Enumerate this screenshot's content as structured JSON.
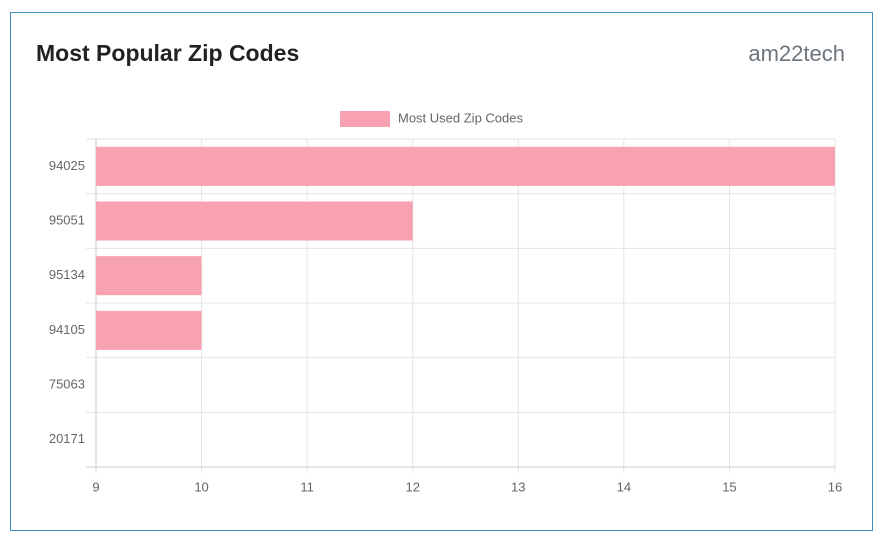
{
  "brand": "am22tech",
  "chart_data": {
    "type": "bar",
    "orientation": "horizontal",
    "title": "Most Popular Zip Codes",
    "categories": [
      "94025",
      "95051",
      "95134",
      "94105",
      "75063",
      "20171"
    ],
    "series": [
      {
        "name": "Most Used Zip Codes",
        "color": "#f7a1b1",
        "values": [
          16,
          12,
          10,
          10,
          9,
          9
        ]
      }
    ],
    "xlim": [
      9,
      16
    ],
    "xticks": [
      9,
      10,
      11,
      12,
      13,
      14,
      15,
      16
    ],
    "grid": true,
    "legend": "top"
  }
}
